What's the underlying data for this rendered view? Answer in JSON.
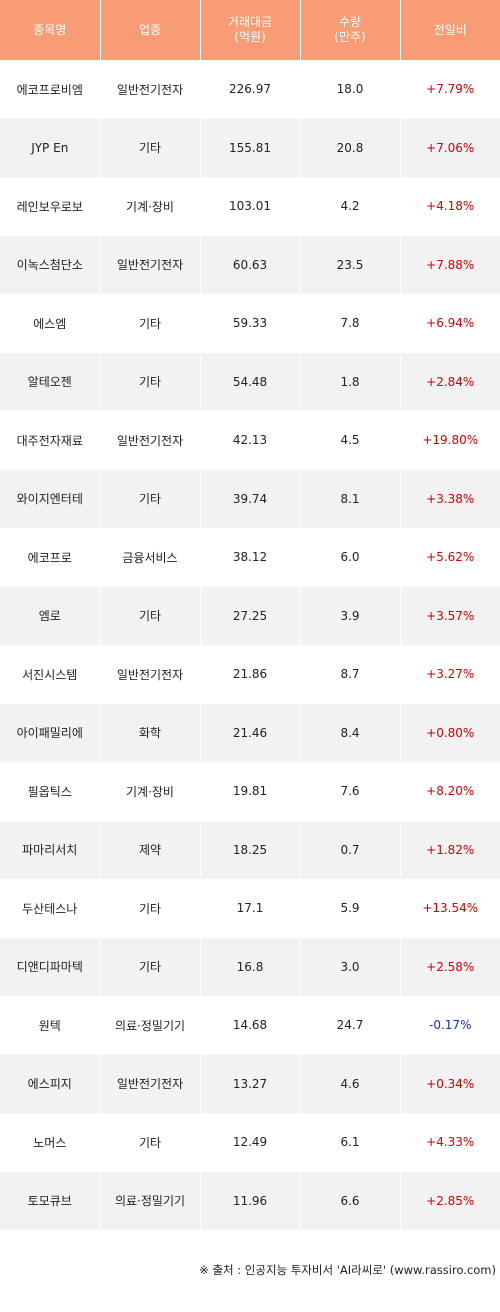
{
  "header": {
    "name": "종목명",
    "sector": "업종",
    "volume_value_line1": "거래대금",
    "volume_value_line2": "(억원)",
    "quantity_line1": "수량",
    "quantity_line2": "(만주)",
    "change": "전일비"
  },
  "rows": [
    {
      "name": "에코프로비엠",
      "sector": "일반전기전자",
      "amount": "226.97",
      "qty": "18.0",
      "change": "+7.79%",
      "dir": "up"
    },
    {
      "name": "JYP En",
      "sector": "기타",
      "amount": "155.81",
      "qty": "20.8",
      "change": "+7.06%",
      "dir": "up"
    },
    {
      "name": "레인보우로보",
      "sector": "기계·장비",
      "amount": "103.01",
      "qty": "4.2",
      "change": "+4.18%",
      "dir": "up"
    },
    {
      "name": "이녹스첨단소",
      "sector": "일반전기전자",
      "amount": "60.63",
      "qty": "23.5",
      "change": "+7.88%",
      "dir": "up"
    },
    {
      "name": "에스엠",
      "sector": "기타",
      "amount": "59.33",
      "qty": "7.8",
      "change": "+6.94%",
      "dir": "up"
    },
    {
      "name": "알테오젠",
      "sector": "기타",
      "amount": "54.48",
      "qty": "1.8",
      "change": "+2.84%",
      "dir": "up"
    },
    {
      "name": "대주전자재료",
      "sector": "일반전기전자",
      "amount": "42.13",
      "qty": "4.5",
      "change": "+19.80%",
      "dir": "up"
    },
    {
      "name": "와이지엔터테",
      "sector": "기타",
      "amount": "39.74",
      "qty": "8.1",
      "change": "+3.38%",
      "dir": "up"
    },
    {
      "name": "에코프로",
      "sector": "금융서비스",
      "amount": "38.12",
      "qty": "6.0",
      "change": "+5.62%",
      "dir": "up"
    },
    {
      "name": "엠로",
      "sector": "기타",
      "amount": "27.25",
      "qty": "3.9",
      "change": "+3.57%",
      "dir": "up"
    },
    {
      "name": "서진시스템",
      "sector": "일반전기전자",
      "amount": "21.86",
      "qty": "8.7",
      "change": "+3.27%",
      "dir": "up"
    },
    {
      "name": "아이패밀리에",
      "sector": "화학",
      "amount": "21.46",
      "qty": "8.4",
      "change": "+0.80%",
      "dir": "up"
    },
    {
      "name": "필옵틱스",
      "sector": "기계·장비",
      "amount": "19.81",
      "qty": "7.6",
      "change": "+8.20%",
      "dir": "up"
    },
    {
      "name": "파마리서치",
      "sector": "제약",
      "amount": "18.25",
      "qty": "0.7",
      "change": "+1.82%",
      "dir": "up"
    },
    {
      "name": "두산테스나",
      "sector": "기타",
      "amount": "17.1",
      "qty": "5.9",
      "change": "+13.54%",
      "dir": "up"
    },
    {
      "name": "디앤디파마텍",
      "sector": "기타",
      "amount": "16.8",
      "qty": "3.0",
      "change": "+2.58%",
      "dir": "up"
    },
    {
      "name": "원텍",
      "sector": "의료·정밀기기",
      "amount": "14.68",
      "qty": "24.7",
      "change": "-0.17%",
      "dir": "down"
    },
    {
      "name": "에스피지",
      "sector": "일반전기전자",
      "amount": "13.27",
      "qty": "4.6",
      "change": "+0.34%",
      "dir": "up"
    },
    {
      "name": "노머스",
      "sector": "기타",
      "amount": "12.49",
      "qty": "6.1",
      "change": "+4.33%",
      "dir": "up"
    },
    {
      "name": "토모큐브",
      "sector": "의료·정밀기기",
      "amount": "11.96",
      "qty": "6.6",
      "change": "+2.85%",
      "dir": "up"
    }
  ],
  "source_note": "※ 출처 : 인공지능 투자비서 'AI라씨로' (www.rassiro.com)",
  "colors": {
    "header_bg": "#f79c74",
    "up": "#d20000",
    "down": "#1a2fb8",
    "stripe": "#f2f2f2"
  }
}
